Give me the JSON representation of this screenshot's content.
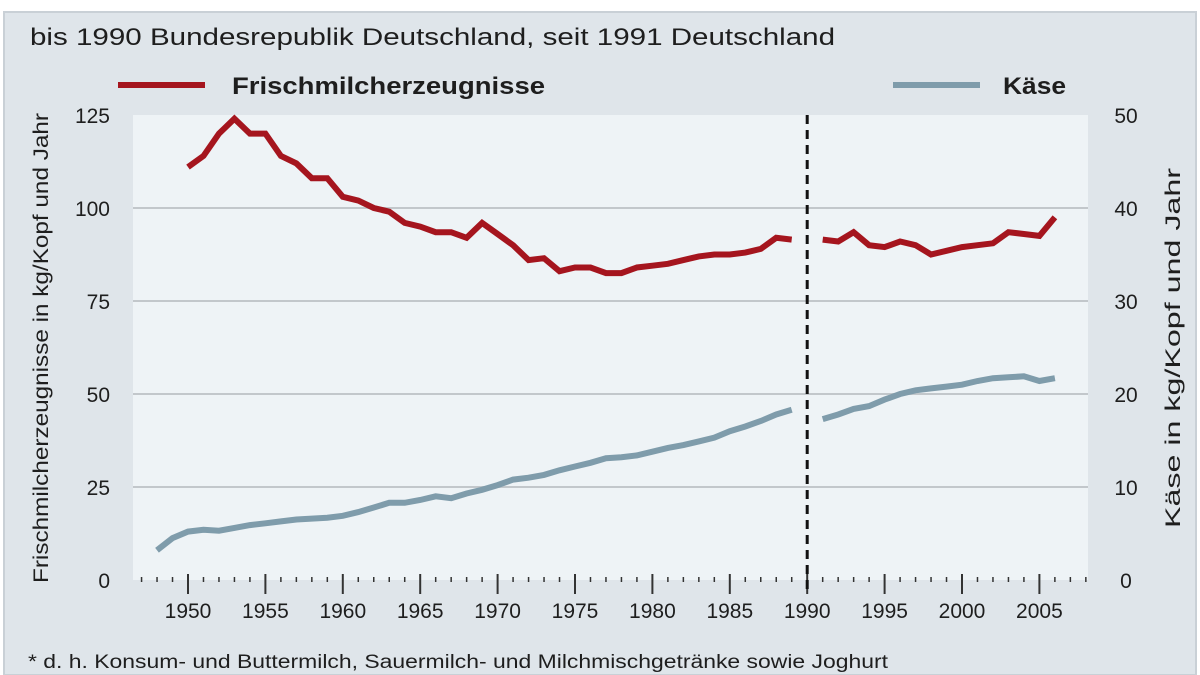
{
  "subtitle": "bis 1990 Bundesrepublik Deutschland, seit 1991 Deutschland",
  "footnote": "* d. h. Konsum- und Buttermilch, Sauermilch- und Milchmischgetränke sowie Joghurt",
  "colors": {
    "frischmilch": "#a5151e",
    "kaese": "#7f9cab",
    "plot_bg": "#eef3f6",
    "panel_bg": "#dfe5ea"
  },
  "chart_data": {
    "type": "line",
    "subtitle": "bis 1990 Bundesrepublik Deutschland, seit 1991 Deutschland",
    "legend_placement": "top",
    "grid": true,
    "xlim": [
      1947,
      2008
    ],
    "x_ticks": [
      1950,
      1955,
      1960,
      1965,
      1970,
      1975,
      1980,
      1985,
      1990,
      1995,
      2000,
      2005
    ],
    "x_tick_labels": [
      "1950",
      "1955",
      "1960",
      "1965",
      "1970",
      "1975",
      "1980",
      "1985",
      "1990",
      "1995",
      "2000",
      "2005"
    ],
    "break_marker_year": 1990,
    "ylabel_left": "Frischmilcherzeugnisse in kg/Kopf und Jahr",
    "ylim_left": [
      0,
      125
    ],
    "y_ticks_left": [
      "0",
      "25",
      "50",
      "75",
      "100",
      "125"
    ],
    "ylabel_right": "Käse in kg/Kopf und Jahr",
    "ylim_right": [
      0,
      50
    ],
    "y_ticks_right": [
      "0",
      "10",
      "20",
      "30",
      "40",
      "50"
    ],
    "series": [
      {
        "name": "Frischmilcherzeugnisse",
        "axis": "left",
        "segments": [
          {
            "x": [
              1950,
              1951,
              1952,
              1953,
              1954,
              1955,
              1956,
              1957,
              1958,
              1959,
              1960,
              1961,
              1962,
              1963,
              1964,
              1965,
              1966,
              1967,
              1968,
              1969,
              1970,
              1971,
              1972,
              1973,
              1974,
              1975,
              1976,
              1977,
              1978,
              1979,
              1980,
              1981,
              1982,
              1983,
              1984,
              1985,
              1986,
              1987,
              1988,
              1989
            ],
            "y": [
              111,
              114,
              120,
              124,
              120,
              120,
              114,
              112,
              108,
              108,
              103,
              102,
              100,
              99,
              96,
              95,
              93.5,
              93.5,
              92,
              96,
              93,
              90,
              86,
              86.5,
              83,
              84,
              84,
              82.5,
              82.5,
              84,
              84.5,
              85,
              86,
              87,
              87.5,
              87.5,
              88,
              89,
              92,
              91.5
            ]
          },
          {
            "x": [
              1991,
              1992,
              1993,
              1994,
              1995,
              1996,
              1997,
              1998,
              1999,
              2000,
              2001,
              2002,
              2003,
              2004,
              2005,
              2006
            ],
            "y": [
              91.5,
              91,
              93.5,
              90,
              89.5,
              91,
              90,
              87.5,
              88.5,
              89.5,
              90,
              90.5,
              93.5,
              93,
              92.5,
              97.5
            ]
          }
        ]
      },
      {
        "name": "Käse",
        "axis": "right",
        "segments": [
          {
            "x": [
              1948,
              1949,
              1950,
              1951,
              1952,
              1953,
              1954,
              1955,
              1956,
              1957,
              1958,
              1959,
              1960,
              1961,
              1962,
              1963,
              1964,
              1965,
              1966,
              1967,
              1968,
              1969,
              1970,
              1971,
              1972,
              1973,
              1974,
              1975,
              1976,
              1977,
              1978,
              1979,
              1980,
              1981,
              1982,
              1983,
              1984,
              1985,
              1986,
              1987,
              1988,
              1989
            ],
            "y": [
              3.2,
              4.5,
              5.2,
              5.4,
              5.3,
              5.6,
              5.9,
              6.1,
              6.3,
              6.5,
              6.6,
              6.7,
              6.9,
              7.3,
              7.8,
              8.3,
              8.3,
              8.6,
              9.0,
              8.8,
              9.3,
              9.7,
              10.2,
              10.8,
              11.0,
              11.3,
              11.8,
              12.2,
              12.6,
              13.1,
              13.2,
              13.4,
              13.8,
              14.2,
              14.5,
              14.9,
              15.3,
              16.0,
              16.5,
              17.1,
              17.8,
              18.3
            ]
          },
          {
            "x": [
              1991,
              1992,
              1993,
              1994,
              1995,
              1996,
              1997,
              1998,
              1999,
              2000,
              2001,
              2002,
              2003,
              2004,
              2005,
              2006
            ],
            "y": [
              17.3,
              17.8,
              18.4,
              18.7,
              19.4,
              20.0,
              20.4,
              20.6,
              20.8,
              21.0,
              21.4,
              21.7,
              21.8,
              21.9,
              21.4,
              21.7
            ]
          }
        ]
      }
    ]
  }
}
